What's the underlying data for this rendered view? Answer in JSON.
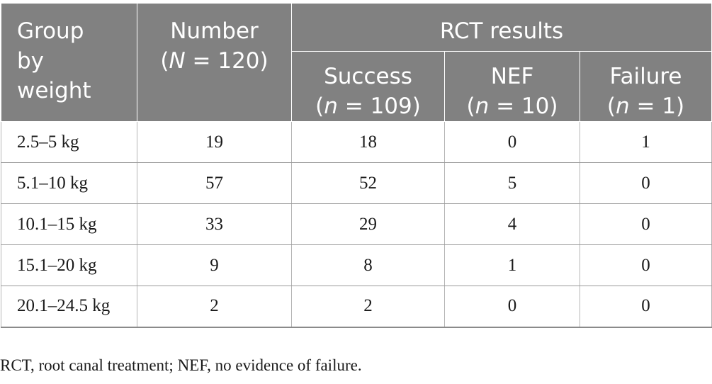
{
  "header": {
    "group_line1": "Group",
    "group_line2": "by",
    "group_line3": "weight",
    "number_line1": "Number",
    "number_var": "N",
    "number_eq": " = 120)",
    "rct_results": "RCT results",
    "success_label": "Success",
    "success_var": "n",
    "success_eq": " = 109)",
    "nef_label": "NEF",
    "nef_var": "n",
    "nef_eq": " = 10)",
    "failure_label": "Failure",
    "failure_var": "n",
    "failure_eq": " = 1)"
  },
  "rows": [
    {
      "weight": "2.5–5 kg",
      "number": "19",
      "success": "18",
      "nef": "0",
      "failure": "1"
    },
    {
      "weight": "5.1–10 kg",
      "number": "57",
      "success": "52",
      "nef": "5",
      "failure": "0"
    },
    {
      "weight": "10.1–15 kg",
      "number": "33",
      "success": "29",
      "nef": "4",
      "failure": "0"
    },
    {
      "weight": "15.1–20 kg",
      "number": "9",
      "success": "8",
      "nef": "1",
      "failure": "0"
    },
    {
      "weight": "20.1–24.5 kg",
      "number": "2",
      "success": "2",
      "nef": "0",
      "failure": "0"
    }
  ],
  "footnote": "RCT, root canal treatment; NEF, no evidence of failure.",
  "colors": {
    "header_bg": "#818181",
    "header_text": "#ffffff",
    "body_text": "#1a1a1a"
  }
}
